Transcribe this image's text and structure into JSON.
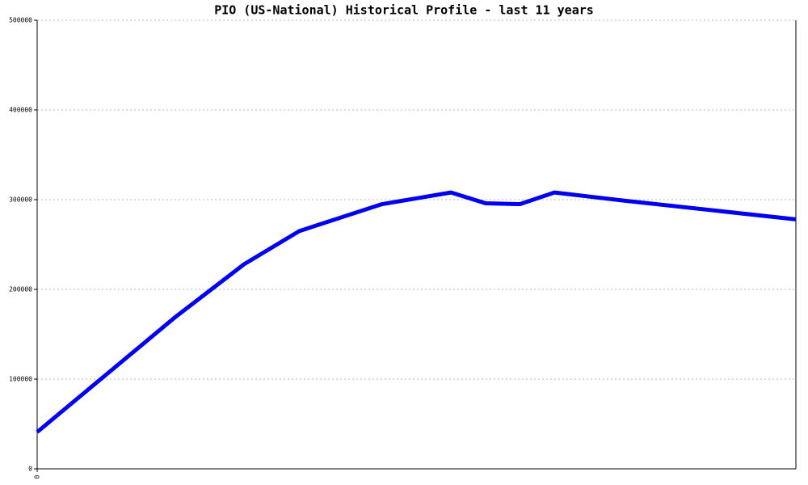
{
  "chart_data": {
    "type": "line",
    "title": "PIO (US-National) Historical Profile - last 11 years",
    "x": [
      0,
      2,
      3,
      3.8,
      5,
      6,
      6.5,
      7,
      7.5,
      8.5,
      11
    ],
    "series": [
      {
        "color": "#0000ee",
        "values": [
          41000,
          169000,
          228000,
          265000,
          295000,
          308000,
          296000,
          295000,
          308000,
          299000,
          278000
        ]
      }
    ],
    "xlim": [
      0,
      11
    ],
    "xticks": [
      0
    ],
    "ylim": [
      0,
      500000
    ],
    "yticks": [
      0,
      100000,
      200000,
      300000,
      400000,
      500000
    ],
    "grid": true
  }
}
